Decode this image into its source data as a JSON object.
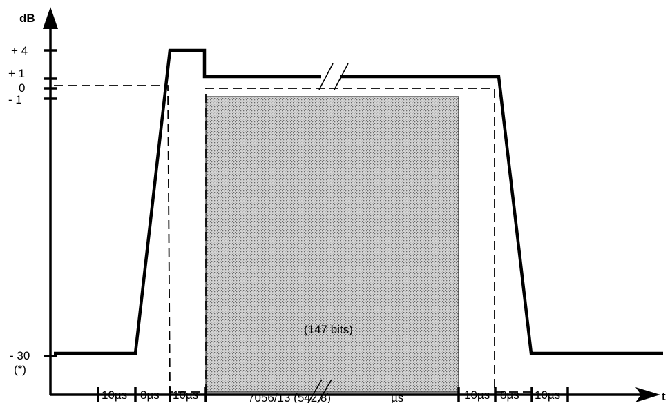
{
  "y_axis": {
    "unit": "dB",
    "ticks": [
      "+ 4",
      "+ 1",
      "0",
      "- 1"
    ],
    "bottom_label": "- 30",
    "bottom_note": "(*)"
  },
  "x_axis": {
    "unit": "t",
    "segments": [
      "10µs",
      "8µs",
      "10µs",
      "7056/13 (542.8)",
      "µs",
      "10µs",
      "8µs",
      "10µs"
    ]
  },
  "burst": {
    "label": "(147 bits)",
    "fill_color": "#c8c8c8"
  },
  "colors": {
    "line": "#000000",
    "background": "#ffffff"
  }
}
